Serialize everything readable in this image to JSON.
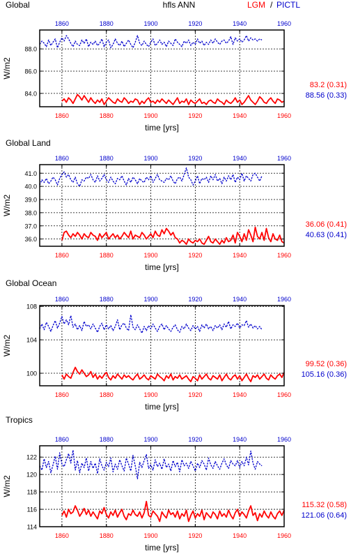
{
  "header": {
    "panel_title": "Global",
    "center_title": "hfls ANN",
    "legend_lgm": "LGM",
    "legend_sep": "/",
    "legend_pictl": "PICTL"
  },
  "colors": {
    "lgm": "#ff0000",
    "pictl": "#0000cc",
    "axis": "#000000",
    "grid": "#000000"
  },
  "chart_data": [
    {
      "type": "line",
      "title": "Global",
      "xlabel": "time [yrs]",
      "ylabel": "W/m2",
      "xlim": [
        1850,
        1960
      ],
      "ylim": [
        82.8,
        89.7
      ],
      "yticks": [
        84.0,
        86.0,
        88.0
      ],
      "ytick_labels": [
        "84.0",
        "86.0",
        "88.0"
      ],
      "xticks": [
        1860,
        1880,
        1900,
        1920,
        1940,
        1960
      ],
      "grid": true,
      "stats": {
        "lgm": "83.2 (0.31)",
        "pictl": "88.56 (0.33)"
      },
      "series": [
        {
          "name": "LGM",
          "x_start": 1860,
          "x_step": 1,
          "values": [
            83.3,
            83.5,
            83.2,
            83.6,
            83.4,
            83.1,
            83.5,
            83.9,
            83.7,
            83.4,
            83.8,
            83.5,
            83.2,
            83.6,
            83.3,
            83.1,
            83.4,
            83.2,
            83.5,
            83.0,
            83.3,
            83.6,
            83.4,
            83.2,
            83.1,
            83.5,
            83.3,
            83.2,
            83.6,
            83.4,
            83.1,
            83.3,
            83.2,
            83.5,
            83.4,
            83.0,
            83.3,
            83.1,
            83.4,
            83.6,
            83.2,
            83.3,
            83.1,
            83.4,
            83.2,
            83.5,
            83.3,
            83.1,
            83.4,
            83.2,
            83.0,
            83.3,
            83.6,
            83.1,
            83.3,
            83.2,
            83.5,
            83.0,
            83.4,
            83.2,
            83.1,
            83.3,
            83.5,
            83.1,
            83.2,
            83.0,
            83.3,
            83.4,
            83.2,
            83.1,
            83.5,
            83.3,
            83.2,
            83.0,
            83.4,
            83.2,
            83.1,
            83.3,
            83.6,
            83.2,
            83.4,
            83.0,
            83.2,
            83.5,
            83.8,
            83.4,
            83.2,
            83.0,
            83.3,
            83.7,
            83.5,
            83.2,
            83.1,
            83.4,
            83.6,
            83.3,
            83.1,
            83.5,
            83.4,
            83.2,
            83.3
          ]
        },
        {
          "name": "PICTL",
          "x_start": 1850,
          "x_step": 1,
          "values": [
            88.4,
            88.7,
            88.5,
            88.2,
            88.8,
            88.3,
            88.6,
            88.9,
            88.1,
            88.6,
            89.0,
            88.7,
            89.2,
            88.9,
            88.5,
            88.2,
            88.7,
            88.4,
            88.3,
            88.8,
            88.5,
            88.9,
            88.2,
            88.6,
            88.4,
            88.7,
            88.3,
            88.5,
            88.9,
            88.2,
            88.6,
            88.8,
            88.1,
            88.4,
            88.9,
            88.5,
            88.3,
            88.7,
            88.2,
            88.5,
            88.8,
            88.4,
            88.1,
            88.6,
            89.2,
            88.5,
            88.3,
            88.7,
            88.4,
            88.2,
            88.6,
            88.9,
            88.3,
            88.5,
            88.8,
            88.4,
            88.6,
            88.2,
            88.7,
            88.5,
            88.3,
            88.9,
            88.6,
            88.4,
            88.2,
            88.7,
            88.5,
            88.8,
            88.3,
            88.6,
            88.4,
            88.9,
            88.5,
            88.7,
            88.3,
            88.6,
            88.4,
            88.8,
            88.5,
            88.9,
            88.6,
            88.4,
            88.7,
            88.8,
            88.5,
            88.7,
            89.1,
            88.4,
            89.0,
            88.7,
            88.9,
            88.6,
            88.8,
            89.2,
            88.7,
            89.0,
            88.8,
            88.9,
            88.7,
            88.9,
            88.8
          ]
        }
      ]
    },
    {
      "type": "line",
      "title": "Global Land",
      "xlabel": "time [yrs]",
      "ylabel": "W/m2",
      "xlim": [
        1850,
        1960
      ],
      "ylim": [
        35.45,
        41.65
      ],
      "yticks": [
        36.0,
        37.0,
        38.0,
        39.0,
        40.0,
        41.0
      ],
      "ytick_labels": [
        "36.0",
        "37.0",
        "38.0",
        "39.0",
        "40.0",
        "41.0"
      ],
      "xticks": [
        1860,
        1880,
        1900,
        1920,
        1940,
        1960
      ],
      "grid": true,
      "stats": {
        "lgm": "36.06 (0.41)",
        "pictl": "40.63 (0.41)"
      },
      "series": [
        {
          "name": "LGM",
          "x_start": 1860,
          "x_step": 1,
          "values": [
            35.9,
            36.5,
            36.6,
            36.3,
            36.1,
            36.4,
            36.2,
            36.5,
            36.3,
            36.0,
            36.4,
            36.2,
            36.1,
            36.5,
            36.3,
            36.2,
            35.9,
            36.4,
            36.1,
            36.3,
            36.5,
            36.0,
            36.2,
            36.4,
            36.1,
            36.3,
            36.0,
            36.2,
            36.5,
            36.3,
            36.1,
            36.6,
            36.0,
            36.3,
            36.2,
            36.1,
            36.5,
            36.3,
            36.0,
            36.2,
            36.4,
            36.1,
            36.6,
            36.3,
            36.2,
            36.7,
            36.4,
            36.8,
            36.6,
            36.3,
            36.5,
            36.1,
            36.0,
            35.7,
            35.9,
            35.8,
            35.6,
            36.0,
            35.8,
            35.7,
            35.9,
            35.8,
            36.0,
            35.7,
            35.6,
            35.9,
            36.2,
            35.8,
            35.7,
            36.0,
            35.8,
            35.6,
            35.9,
            35.7,
            36.1,
            35.8,
            35.9,
            36.3,
            35.7,
            36.5,
            36.2,
            35.8,
            36.4,
            35.9,
            36.7,
            36.3,
            35.8,
            36.9,
            36.2,
            36.0,
            36.5,
            35.9,
            36.8,
            36.1,
            35.8,
            36.4,
            36.0,
            35.9,
            36.3,
            35.8,
            35.7
          ]
        },
        {
          "name": "PICTL",
          "x_start": 1850,
          "x_step": 1,
          "values": [
            40.1,
            40.5,
            40.3,
            40.6,
            40.2,
            40.4,
            40.7,
            40.5,
            40.1,
            40.6,
            40.9,
            41.1,
            40.7,
            40.9,
            40.5,
            40.3,
            40.7,
            40.2,
            40.0,
            40.5,
            40.4,
            40.7,
            40.6,
            40.9,
            40.5,
            40.3,
            40.8,
            40.4,
            40.6,
            40.9,
            40.5,
            40.3,
            40.7,
            40.4,
            40.2,
            40.6,
            40.5,
            40.8,
            40.4,
            40.1,
            40.6,
            40.3,
            40.7,
            40.5,
            40.2,
            40.6,
            40.4,
            40.3,
            40.7,
            40.5,
            40.8,
            40.3,
            40.6,
            40.9,
            40.5,
            40.4,
            40.3,
            40.6,
            40.5,
            40.8,
            40.4,
            40.2,
            40.6,
            40.7,
            40.4,
            40.9,
            41.4,
            40.7,
            40.5,
            40.1,
            40.4,
            40.8,
            40.2,
            40.6,
            40.5,
            40.7,
            40.3,
            40.8,
            40.5,
            40.9,
            40.4,
            40.6,
            40.2,
            40.7,
            40.4,
            40.8,
            40.5,
            40.9,
            40.3,
            40.7,
            40.5,
            41.0,
            40.4,
            40.8,
            40.6,
            40.4,
            40.9,
            41.0,
            40.7,
            40.4,
            40.8
          ]
        }
      ]
    },
    {
      "type": "line",
      "title": "Global Ocean",
      "xlabel": "time [yrs]",
      "ylabel": "W/m2",
      "xlim": [
        1850,
        1960
      ],
      "ylim": [
        98.5,
        108.1
      ],
      "yticks": [
        100,
        104,
        108
      ],
      "ytick_labels": [
        "100",
        "104",
        "108"
      ],
      "xticks": [
        1860,
        1880,
        1900,
        1920,
        1940,
        1960
      ],
      "grid": true,
      "stats": {
        "lgm": "99.52 (0.36)",
        "pictl": "105.16 (0.36)"
      },
      "series": [
        {
          "name": "LGM",
          "x_start": 1860,
          "x_step": 1,
          "values": [
            99.8,
            99.3,
            99.9,
            99.6,
            99.4,
            100.1,
            100.7,
            100.2,
            99.9,
            100.4,
            100.0,
            99.6,
            99.8,
            100.2,
            99.5,
            99.9,
            99.3,
            99.7,
            99.4,
            99.8,
            100.1,
            99.5,
            99.2,
            99.7,
            99.4,
            99.9,
            99.6,
            99.3,
            99.8,
            99.5,
            99.7,
            99.4,
            99.2,
            99.6,
            99.9,
            99.3,
            99.5,
            99.8,
            99.4,
            99.2,
            99.7,
            99.5,
            99.3,
            99.9,
            99.6,
            99.4,
            99.1,
            99.7,
            99.4,
            99.9,
            99.2,
            99.6,
            99.4,
            99.8,
            99.3,
            99.5,
            99.7,
            99.3,
            99.0,
            99.6,
            99.4,
            99.1,
            99.8,
            99.3,
            99.6,
            99.9,
            99.4,
            99.2,
            99.7,
            99.5,
            99.3,
            99.8,
            99.1,
            99.5,
            99.9,
            99.4,
            99.2,
            99.6,
            99.8,
            99.3,
            99.7,
            99.1,
            99.5,
            99.9,
            99.4,
            99.0,
            99.7,
            99.5,
            99.8,
            99.3,
            99.6,
            99.9,
            99.4,
            99.2,
            99.8,
            99.5,
            99.3,
            99.7,
            99.9,
            99.5,
            100.1
          ]
        },
        {
          "name": "PICTL",
          "x_start": 1850,
          "x_step": 1,
          "values": [
            105.3,
            105.9,
            105.2,
            106.1,
            105.6,
            105.0,
            105.7,
            106.3,
            105.4,
            106.0,
            106.8,
            105.9,
            106.4,
            105.8,
            106.9,
            105.5,
            105.9,
            105.2,
            105.7,
            105.1,
            106.2,
            105.6,
            105.8,
            105.3,
            105.9,
            105.4,
            104.9,
            105.6,
            106.0,
            105.2,
            105.8,
            105.3,
            105.7,
            105.1,
            105.6,
            106.4,
            105.2,
            105.8,
            106.0,
            105.4,
            105.1,
            107.0,
            105.5,
            105.2,
            105.8,
            105.3,
            104.8,
            105.6,
            105.1,
            105.7,
            105.3,
            105.9,
            105.4,
            105.0,
            105.6,
            105.9,
            105.2,
            105.7,
            105.3,
            105.0,
            105.5,
            105.8,
            105.2,
            104.9,
            105.6,
            105.3,
            105.9,
            105.4,
            105.1,
            105.7,
            105.3,
            105.6,
            105.0,
            105.8,
            105.4,
            105.9,
            105.3,
            105.6,
            105.1,
            105.7,
            105.4,
            105.8,
            105.2,
            105.9,
            105.5,
            106.2,
            105.3,
            105.8,
            105.6,
            106.0,
            105.4,
            105.8,
            105.7,
            106.3,
            105.5,
            105.9,
            105.4,
            105.7,
            105.3,
            105.6,
            105.2
          ]
        }
      ]
    },
    {
      "type": "line",
      "title": "Tropics",
      "xlabel": "time [yrs]",
      "ylabel": "W/m2",
      "xlim": [
        1850,
        1960
      ],
      "ylim": [
        114,
        123.3
      ],
      "yticks": [
        114,
        116,
        118,
        120,
        122
      ],
      "ytick_labels": [
        "114",
        "116",
        "118",
        "120",
        "122"
      ],
      "xticks": [
        1860,
        1880,
        1900,
        1920,
        1940,
        1960
      ],
      "grid": true,
      "stats": {
        "lgm": "115.32 (0.58)",
        "pictl": "121.06 (0.64)"
      },
      "series": [
        {
          "name": "LGM",
          "x_start": 1860,
          "x_step": 1,
          "values": [
            115.3,
            115.8,
            115.1,
            116.0,
            115.5,
            115.7,
            116.4,
            115.9,
            115.2,
            115.6,
            116.1,
            115.4,
            115.9,
            115.2,
            115.7,
            115.3,
            114.9,
            115.8,
            115.5,
            116.2,
            115.4,
            115.0,
            115.7,
            115.3,
            115.9,
            115.1,
            115.6,
            116.0,
            115.2,
            114.8,
            115.5,
            115.3,
            115.9,
            115.4,
            115.2,
            115.7,
            115.0,
            115.6,
            116.9,
            115.3,
            115.1,
            115.8,
            115.5,
            115.2,
            114.6,
            115.7,
            115.3,
            115.0,
            115.9,
            115.4,
            115.6,
            115.1,
            115.8,
            114.9,
            115.5,
            115.2,
            115.9,
            114.6,
            115.3,
            115.8,
            115.0,
            115.5,
            115.2,
            115.9,
            114.8,
            115.6,
            115.3,
            115.0,
            115.7,
            115.4,
            114.9,
            115.8,
            115.2,
            115.5,
            115.1,
            115.9,
            115.3,
            114.9,
            115.6,
            116.0,
            115.2,
            115.7,
            115.4,
            115.0,
            115.8,
            116.4,
            115.3,
            115.6,
            114.7,
            115.5,
            115.1,
            115.8,
            115.3,
            115.0,
            115.7,
            115.2,
            114.9,
            115.5,
            115.8,
            115.3,
            115.9
          ]
        },
        {
          "name": "PICTL",
          "x_start": 1850,
          "x_step": 1,
          "values": [
            121.0,
            120.5,
            121.8,
            120.8,
            121.5,
            120.2,
            121.1,
            122.1,
            120.6,
            122.5,
            121.2,
            120.9,
            121.7,
            122.4,
            121.3,
            122.8,
            120.5,
            121.6,
            120.2,
            121.3,
            120.8,
            121.9,
            120.4,
            121.5,
            120.7,
            121.3,
            120.1,
            121.8,
            121.0,
            120.5,
            121.4,
            120.9,
            121.9,
            120.3,
            121.2,
            120.6,
            121.7,
            121.0,
            120.4,
            121.9,
            121.2,
            120.4,
            122.2,
            121.0,
            119.5,
            121.4,
            120.8,
            121.6,
            122.3,
            120.7,
            121.1,
            120.5,
            121.7,
            120.9,
            121.3,
            120.6,
            121.8,
            120.8,
            121.2,
            120.4,
            121.6,
            120.9,
            121.4,
            120.3,
            121.7,
            121.0,
            121.3,
            120.7,
            121.5,
            121.0,
            120.4,
            121.3,
            120.8,
            121.6,
            121.2,
            120.5,
            121.9,
            121.1,
            120.7,
            121.5,
            121.0,
            120.6,
            121.3,
            121.8,
            121.1,
            120.7,
            121.6,
            121.2,
            121.0,
            121.6,
            120.8,
            121.5,
            121.0,
            122.0,
            121.1,
            122.7,
            121.3,
            120.6,
            121.5,
            121.2,
            121.0
          ]
        }
      ]
    }
  ]
}
